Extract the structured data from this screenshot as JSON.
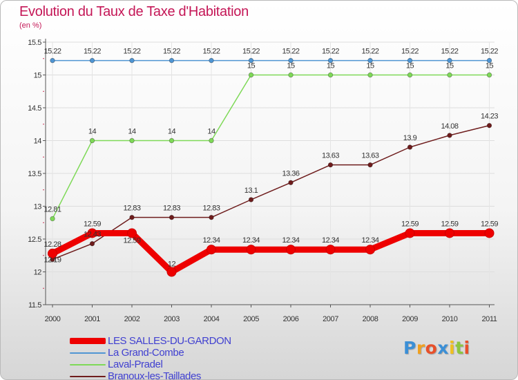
{
  "chart_data": {
    "type": "line",
    "title": "Evolution du Taux de Taxe d'Habitation",
    "ylabel": "(en %)",
    "xlabel": "",
    "categories": [
      "2000",
      "2001",
      "2002",
      "2003",
      "2004",
      "2005",
      "2006",
      "2007",
      "2008",
      "2009",
      "2010",
      "2011"
    ],
    "ylim": [
      11.5,
      15.5
    ],
    "yticks": [
      "11.5",
      "12",
      "12.5",
      "13",
      "13.5",
      "14",
      "14.5",
      "15",
      "15.5"
    ],
    "legend_position": "bottom-left",
    "series": [
      {
        "name": "LES SALLES-DU-GARDON",
        "color": "#ee0000",
        "values": [
          12.28,
          12.59,
          12.59,
          12.0,
          12.34,
          12.34,
          12.34,
          12.34,
          12.34,
          12.59,
          12.59,
          12.59
        ],
        "labels": [
          "12.28",
          "12.59",
          "12.59",
          "12",
          "12.34",
          "12.34",
          "12.34",
          "12.34",
          "12.34",
          "12.59",
          "12.59",
          "12.59"
        ]
      },
      {
        "name": "La Grand-Combe",
        "color": "#4f95d3",
        "values": [
          15.22,
          15.22,
          15.22,
          15.22,
          15.22,
          15.22,
          15.22,
          15.22,
          15.22,
          15.22,
          15.22,
          15.22
        ],
        "labels": [
          "15.22",
          "15.22",
          "15.22",
          "15.22",
          "15.22",
          "15.22",
          "15.22",
          "15.22",
          "15.22",
          "15.22",
          "15.22",
          "15.22"
        ]
      },
      {
        "name": "Laval-Pradel",
        "color": "#7ed957",
        "values": [
          12.81,
          14.0,
          14.0,
          14.0,
          14.0,
          15.0,
          15.0,
          15.0,
          15.0,
          15.0,
          15.0,
          15.0
        ],
        "labels": [
          "12.81",
          "14",
          "14",
          "14",
          "14",
          "15",
          "15",
          "15",
          "15",
          "15",
          "15",
          "15"
        ]
      },
      {
        "name": "Branoux-les-Taillades",
        "color": "#6e1c1c",
        "values": [
          12.19,
          12.43,
          12.83,
          12.83,
          12.83,
          13.1,
          13.36,
          13.63,
          13.63,
          13.9,
          14.08,
          14.23
        ],
        "labels": [
          "12.19",
          "12.43",
          "12.83",
          "12.83",
          "12.83",
          "13.1",
          "13.36",
          "13.63",
          "13.63",
          "13.9",
          "14.08",
          "14.23"
        ]
      }
    ]
  },
  "logo": {
    "letters": [
      "P",
      "r",
      "o",
      "x",
      "i",
      "t",
      "i"
    ],
    "colors": [
      "#3b8fd6",
      "#f0a020",
      "#e8502a",
      "#3b8fd6",
      "#f0c020",
      "#8cc63f",
      "#e8502a"
    ]
  }
}
